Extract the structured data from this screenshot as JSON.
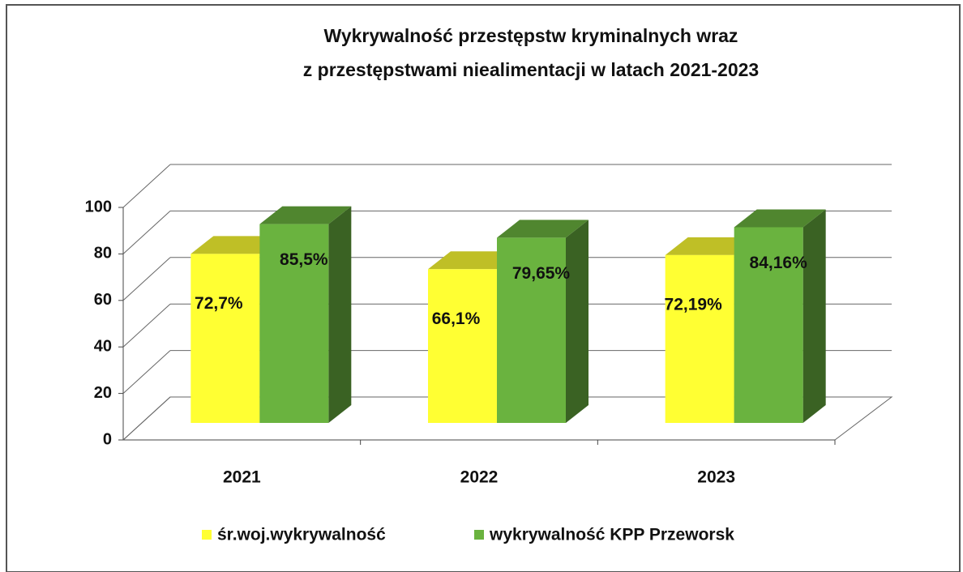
{
  "chart_data": {
    "type": "bar3d",
    "title": [
      "Wykrywalność przestępstw kryminalnych wraz",
      "z przestępstwami niealimentacji w latach 2021-2023"
    ],
    "categories": [
      "2021",
      "2022",
      "2023"
    ],
    "series": [
      {
        "name": "śr.woj.wykrywalność",
        "color": "#ffff33",
        "values": [
          72.7,
          66.1,
          72.19
        ],
        "value_labels": [
          "72,7%",
          "66,1%",
          "72,19%"
        ]
      },
      {
        "name": "wykrywalność KPP Przeworsk",
        "color": "#6ab33f",
        "values": [
          85.5,
          79.65,
          84.16
        ],
        "value_labels": [
          "85,5%",
          "79,65%",
          "84,16%"
        ]
      }
    ],
    "ylim": [
      0,
      100
    ],
    "yticks": [
      0,
      20,
      40,
      60,
      80,
      100
    ],
    "grid": true,
    "legend": "bottom"
  }
}
